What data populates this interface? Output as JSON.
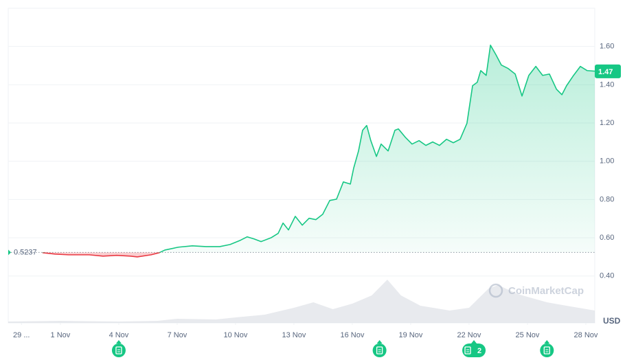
{
  "chart_data": {
    "type": "line",
    "x": [
      -0.92,
      -0.28,
      0.42,
      1.48,
      2.19,
      2.89,
      3.6,
      3.95,
      4.66,
      5.08,
      5.37,
      6.07,
      6.78,
      7.48,
      8.19,
      8.72,
      9.25,
      9.6,
      9.95,
      10.31,
      10.84,
      11.19,
      11.44,
      11.72,
      12.07,
      12.43,
      12.78,
      13.13,
      13.48,
      13.84,
      14.19,
      14.54,
      14.9,
      15.07,
      15.32,
      15.53,
      15.74,
      15.95,
      16.24,
      16.48,
      16.84,
      17.19,
      17.37,
      17.72,
      18.07,
      18.43,
      18.78,
      19.13,
      19.48,
      19.84,
      20.19,
      20.54,
      20.89,
      21.18,
      21.42,
      21.6,
      21.88,
      22.1,
      22.38,
      22.66,
      23.01,
      23.37,
      23.72,
      24.07,
      24.43,
      24.78,
      25.13,
      25.49,
      25.77,
      26.01,
      26.37,
      26.72,
      27.07,
      27.46
    ],
    "series": [
      {
        "color": "#16c784",
        "color_below": "#ea3943",
        "values": [
          0.522,
          0.515,
          0.511,
          0.511,
          0.504,
          0.508,
          0.504,
          0.5,
          0.511,
          0.522,
          0.536,
          0.551,
          0.558,
          0.554,
          0.554,
          0.565,
          0.587,
          0.605,
          0.594,
          0.58,
          0.601,
          0.623,
          0.677,
          0.641,
          0.712,
          0.666,
          0.702,
          0.695,
          0.723,
          0.795,
          0.802,
          0.892,
          0.881,
          0.964,
          1.054,
          1.162,
          1.187,
          1.108,
          1.025,
          1.09,
          1.054,
          1.162,
          1.169,
          1.126,
          1.09,
          1.108,
          1.083,
          1.101,
          1.083,
          1.115,
          1.097,
          1.115,
          1.198,
          1.395,
          1.413,
          1.474,
          1.449,
          1.607,
          1.557,
          1.503,
          1.485,
          1.456,
          1.341,
          1.449,
          1.496,
          1.449,
          1.456,
          1.377,
          1.348,
          1.395,
          1.449,
          1.496,
          1.474,
          1.471
        ]
      }
    ],
    "volume": {
      "x": [
        -2.68,
        0,
        3,
        5,
        6,
        8,
        9,
        10.5,
        12,
        13,
        14,
        15,
        16,
        16.8,
        17.5,
        18.5,
        20,
        21,
        22,
        22.5,
        23.5,
        25,
        26,
        27.46
      ],
      "values": [
        2,
        3,
        2,
        3,
        6,
        5,
        8,
        12,
        22,
        30,
        20,
        28,
        40,
        63,
        40,
        25,
        18,
        22,
        50,
        55,
        42,
        30,
        25,
        18
      ],
      "color": "#d8dce3"
    },
    "baseline": 0.5237,
    "last_price": 1.47,
    "y_axis_label": "USD",
    "watermark": "CoinMarketCap",
    "events": [
      {
        "x": 3
      },
      {
        "x": 16.4
      },
      {
        "x": 21.25,
        "label": "2"
      },
      {
        "x": 25
      }
    ],
    "xlim": [
      -2.68,
      27.46
    ],
    "ylim": [
      0.155,
      1.8
    ],
    "xticks": [
      {
        "value": -2,
        "label": "29 ..."
      },
      {
        "value": 0,
        "label": "1 Nov"
      },
      {
        "value": 3,
        "label": "4 Nov"
      },
      {
        "value": 6,
        "label": "7 Nov"
      },
      {
        "value": 9,
        "label": "10 Nov"
      },
      {
        "value": 12,
        "label": "13 Nov"
      },
      {
        "value": 15,
        "label": "16 Nov"
      },
      {
        "value": 18,
        "label": "19 Nov"
      },
      {
        "value": 21,
        "label": "22 Nov"
      },
      {
        "value": 24,
        "label": "25 Nov"
      },
      {
        "value": 27,
        "label": "28 Nov"
      }
    ],
    "yticks": [
      {
        "value": 0.4,
        "label": "0.40"
      },
      {
        "value": 0.6,
        "label": "0.60"
      },
      {
        "value": 0.8,
        "label": "0.80"
      },
      {
        "value": 1.0,
        "label": "1.00"
      },
      {
        "value": 1.2,
        "label": "1.20"
      },
      {
        "value": 1.4,
        "label": "1.40"
      },
      {
        "value": 1.6,
        "label": "1.60"
      }
    ],
    "grid": true
  }
}
